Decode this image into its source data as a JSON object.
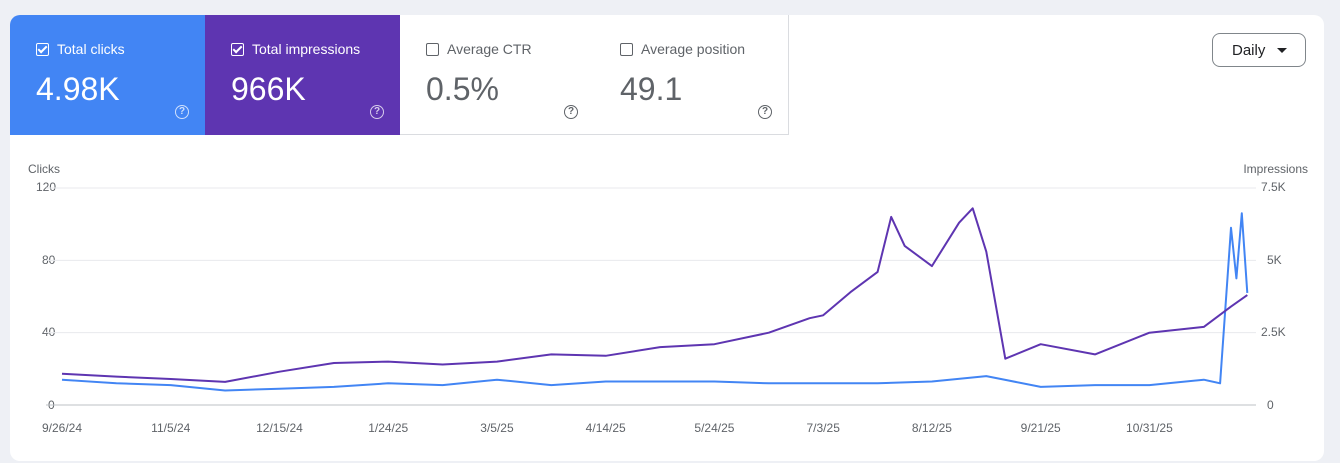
{
  "metrics": {
    "clicks": {
      "label": "Total clicks",
      "value": "4.98K",
      "checked": true
    },
    "impressions": {
      "label": "Total impressions",
      "value": "966K",
      "checked": true
    },
    "ctr": {
      "label": "Average CTR",
      "value": "0.5%",
      "checked": false
    },
    "position": {
      "label": "Average position",
      "value": "49.1",
      "checked": false
    }
  },
  "help_glyph": "?",
  "granularity": {
    "selected": "Daily"
  },
  "colors": {
    "clicks": "#4285f4",
    "impressions": "#5e35b1",
    "grid": "#e8eaed"
  },
  "chart_data": {
    "type": "line",
    "left_axis": {
      "label": "Clicks",
      "ticks": [
        "120",
        "80",
        "40",
        "0"
      ],
      "range": [
        0,
        120
      ]
    },
    "right_axis": {
      "label": "Impressions",
      "ticks": [
        "7.5K",
        "5K",
        "2.5K",
        "0"
      ],
      "range": [
        0,
        7500
      ]
    },
    "x_tick_labels": [
      "9/26/24",
      "11/5/24",
      "12/15/24",
      "1/24/25",
      "3/5/25",
      "4/14/25",
      "5/24/25",
      "7/3/25",
      "8/12/25",
      "9/21/25",
      "10/31/25"
    ],
    "x_range": [
      "9/26/24",
      "12/7/25"
    ],
    "series": [
      {
        "name": "Clicks",
        "axis": "left",
        "points": [
          [
            "9/26/24",
            14
          ],
          [
            "10/16/24",
            12
          ],
          [
            "11/5/24",
            11
          ],
          [
            "11/25/24",
            8
          ],
          [
            "12/15/24",
            9
          ],
          [
            "1/4/25",
            10
          ],
          [
            "1/24/25",
            12
          ],
          [
            "2/13/25",
            11
          ],
          [
            "3/5/25",
            14
          ],
          [
            "3/25/25",
            11
          ],
          [
            "4/14/25",
            13
          ],
          [
            "5/4/25",
            13
          ],
          [
            "5/24/25",
            13
          ],
          [
            "6/13/25",
            12
          ],
          [
            "7/3/25",
            12
          ],
          [
            "7/23/25",
            12
          ],
          [
            "8/12/25",
            13
          ],
          [
            "9/1/25",
            16
          ],
          [
            "9/21/25",
            10
          ],
          [
            "10/11/25",
            11
          ],
          [
            "10/31/25",
            11
          ],
          [
            "11/20/25",
            14
          ],
          [
            "11/26/25",
            12
          ],
          [
            "11/30/25",
            98
          ],
          [
            "12/2/25",
            70
          ],
          [
            "12/4/25",
            106
          ],
          [
            "12/6/25",
            62
          ]
        ]
      },
      {
        "name": "Impressions",
        "axis": "right",
        "points": [
          [
            "9/26/24",
            1080
          ],
          [
            "10/16/24",
            980
          ],
          [
            "11/5/24",
            900
          ],
          [
            "11/25/24",
            800
          ],
          [
            "12/15/24",
            1150
          ],
          [
            "1/4/25",
            1450
          ],
          [
            "1/24/25",
            1500
          ],
          [
            "2/13/25",
            1400
          ],
          [
            "3/5/25",
            1500
          ],
          [
            "3/25/25",
            1750
          ],
          [
            "4/14/25",
            1700
          ],
          [
            "5/4/25",
            2000
          ],
          [
            "5/24/25",
            2100
          ],
          [
            "6/13/25",
            2500
          ],
          [
            "6/28/25",
            3000
          ],
          [
            "7/3/25",
            3100
          ],
          [
            "7/13/25",
            3900
          ],
          [
            "7/23/25",
            4600
          ],
          [
            "7/28/25",
            6500
          ],
          [
            "8/2/25",
            5500
          ],
          [
            "8/12/25",
            4800
          ],
          [
            "8/22/25",
            6300
          ],
          [
            "8/27/25",
            6800
          ],
          [
            "9/1/25",
            5300
          ],
          [
            "9/8/25",
            1600
          ],
          [
            "9/21/25",
            2100
          ],
          [
            "10/11/25",
            1750
          ],
          [
            "10/31/25",
            2500
          ],
          [
            "11/20/25",
            2700
          ],
          [
            "11/30/25",
            3400
          ],
          [
            "12/6/25",
            3800
          ]
        ]
      }
    ]
  }
}
